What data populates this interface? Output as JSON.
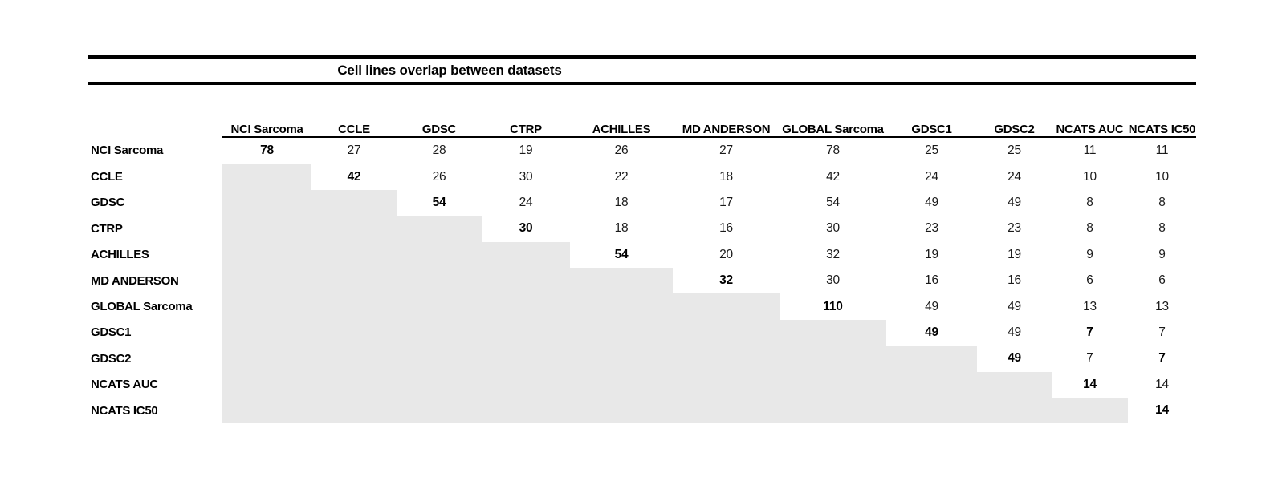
{
  "title": "Cell lines overlap between datasets",
  "colors": {
    "shade": "#e8e8e8",
    "rule": "#000000",
    "text": "#1a1a1a"
  },
  "chart_data": {
    "type": "table",
    "title": "Cell lines overlap between datasets",
    "row_labels": [
      "NCI Sarcoma",
      "CCLE",
      "GDSC",
      "CTRP",
      "ACHILLES",
      "MD ANDERSON",
      "GLOBAL Sarcoma",
      "GDSC1",
      "GDSC2",
      "NCATS AUC",
      "NCATS IC50"
    ],
    "col_labels": [
      "NCI Sarcoma",
      "CCLE",
      "GDSC",
      "CTRP",
      "ACHILLES",
      "MD ANDERSON",
      "GLOBAL Sarcoma",
      "GDSC1",
      "GDSC2",
      "NCATS AUC",
      "NCATS IC50"
    ],
    "matrix": [
      [
        78,
        27,
        28,
        19,
        26,
        27,
        78,
        25,
        25,
        11,
        11
      ],
      [
        null,
        42,
        26,
        30,
        22,
        18,
        42,
        24,
        24,
        10,
        10
      ],
      [
        null,
        null,
        54,
        24,
        18,
        17,
        54,
        49,
        49,
        8,
        8
      ],
      [
        null,
        null,
        null,
        30,
        18,
        16,
        30,
        23,
        23,
        8,
        8
      ],
      [
        null,
        null,
        null,
        null,
        54,
        20,
        32,
        19,
        19,
        9,
        9
      ],
      [
        null,
        null,
        null,
        null,
        null,
        32,
        30,
        16,
        16,
        6,
        6
      ],
      [
        null,
        null,
        null,
        null,
        null,
        null,
        110,
        49,
        49,
        13,
        13
      ],
      [
        null,
        null,
        null,
        null,
        null,
        null,
        null,
        49,
        49,
        7,
        7
      ],
      [
        null,
        null,
        null,
        null,
        null,
        null,
        null,
        null,
        49,
        7,
        7
      ],
      [
        null,
        null,
        null,
        null,
        null,
        null,
        null,
        null,
        null,
        14,
        14
      ],
      [
        null,
        null,
        null,
        null,
        null,
        null,
        null,
        null,
        null,
        null,
        14
      ]
    ],
    "diagonal_bold": true,
    "extra_bold_cells": [
      [
        7,
        9
      ],
      [
        8,
        10
      ]
    ],
    "lower_triangle_shaded": true,
    "shade_color": "#e8e8e8",
    "legend_position": "none",
    "grid": false
  }
}
